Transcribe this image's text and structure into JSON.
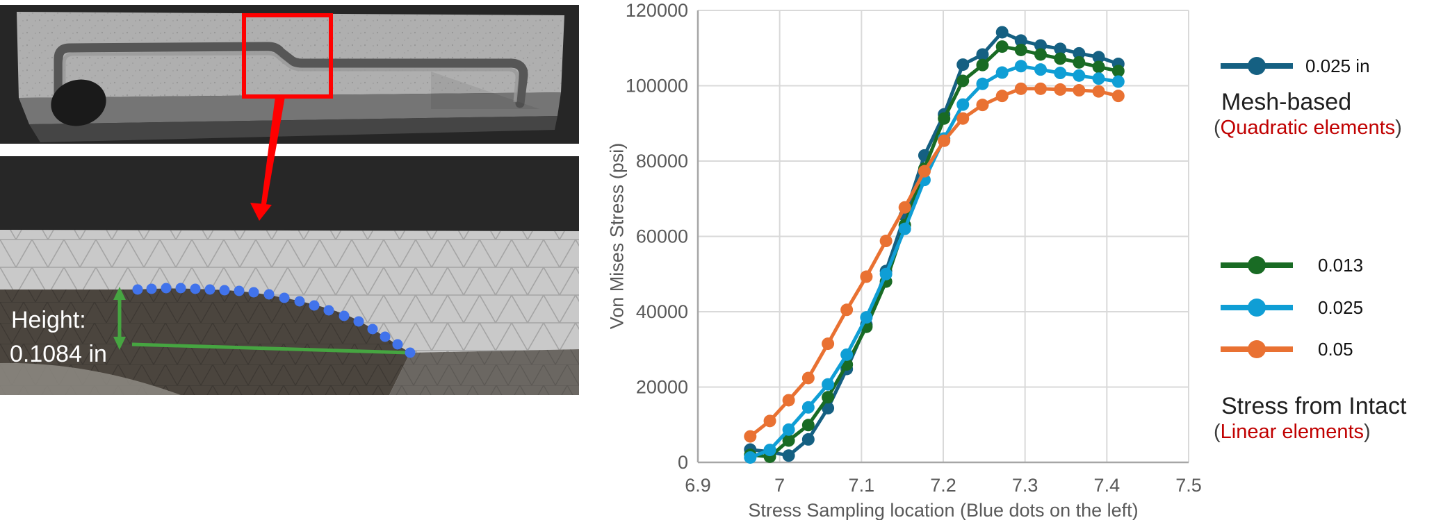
{
  "left_panel": {
    "annotation": {
      "height_line1": "Height:",
      "height_line2": "0.1084 in"
    },
    "colors": {
      "highlight_red": "#FF0000",
      "measure_green": "#46A541",
      "sample_dot_blue": "#4173EB"
    },
    "blue_dots": [
      [
        198,
        192
      ],
      [
        218,
        191
      ],
      [
        239,
        190
      ],
      [
        260,
        190
      ],
      [
        281,
        191
      ],
      [
        302,
        192
      ],
      [
        323,
        193
      ],
      [
        344,
        194
      ],
      [
        365,
        196
      ],
      [
        387,
        199
      ],
      [
        409,
        204
      ],
      [
        431,
        209
      ],
      [
        452,
        215
      ],
      [
        473,
        222
      ],
      [
        495,
        230
      ],
      [
        516,
        238
      ],
      [
        536,
        249
      ],
      [
        554,
        260
      ],
      [
        572,
        271
      ],
      [
        590,
        283
      ]
    ]
  },
  "chart_data": {
    "type": "line",
    "title": "",
    "xlabel": "Stress Sampling location (Blue dots on the left)",
    "ylabel": "Von Mises Stress (psi)",
    "xlim": [
      6.9,
      7.5
    ],
    "ylim": [
      0,
      120000
    ],
    "grid": true,
    "x_ticks": [
      "6.9",
      "7",
      "7.1",
      "7.2",
      "7.3",
      "7.4",
      "7.5"
    ],
    "x_tick_values": [
      6.9,
      7.0,
      7.1,
      7.2,
      7.3,
      7.4,
      7.5
    ],
    "y_ticks": [
      "0",
      "20000",
      "40000",
      "60000",
      "80000",
      "100000",
      "120000"
    ],
    "y_tick_values": [
      0,
      20000,
      40000,
      60000,
      80000,
      100000,
      120000
    ],
    "x": [
      6.964,
      6.988,
      7.011,
      7.035,
      7.059,
      7.082,
      7.106,
      7.13,
      7.153,
      7.177,
      7.201,
      7.224,
      7.248,
      7.272,
      7.295,
      7.319,
      7.343,
      7.366,
      7.39,
      7.414
    ],
    "series": [
      {
        "name": "0.025 in",
        "group": "Mesh-based (Quadratic elements)",
        "color": "#156082",
        "y": [
          3400,
          2800,
          1800,
          6100,
          14400,
          24800,
          36600,
          50800,
          65500,
          81500,
          92400,
          105600,
          108300,
          114200,
          112000,
          110700,
          109800,
          108600,
          107600,
          105800
        ]
      },
      {
        "name": "0.013",
        "group": "Stress from Intact (Linear elements)",
        "color": "#196B24",
        "y": [
          2000,
          1500,
          5800,
          9900,
          17300,
          26000,
          36000,
          48000,
          63000,
          78000,
          91300,
          101300,
          105500,
          110400,
          109500,
          108300,
          107200,
          106200,
          105000,
          103900
        ]
      },
      {
        "name": "0.025",
        "group": "Stress from Intact (Linear elements)",
        "color": "#0F9ED5",
        "y": [
          1300,
          3300,
          8700,
          14600,
          20700,
          28600,
          38500,
          50000,
          62000,
          75000,
          86000,
          95000,
          100500,
          103500,
          105200,
          104300,
          103400,
          102700,
          101900,
          101100
        ]
      },
      {
        "name": "0.05",
        "group": "Stress from Intact (Linear elements)",
        "color": "#E97132",
        "y": [
          6900,
          11000,
          16500,
          22400,
          31500,
          40500,
          49300,
          58800,
          67700,
          77300,
          85400,
          91300,
          94900,
          97300,
          99200,
          99200,
          99000,
          98800,
          98500,
          97300
        ]
      }
    ]
  },
  "legend": {
    "mesh_based": {
      "marker_label": "0.025 in",
      "color": "#156082",
      "title": "Mesh-based",
      "paren_open": "(",
      "subtitle": "Quadratic elements",
      "paren_close": ")"
    },
    "intact": {
      "title": "Stress from Intact",
      "paren_open": "(",
      "subtitle": "Linear elements",
      "paren_close": ")",
      "entries": [
        {
          "label": "0.013",
          "color": "#196B24"
        },
        {
          "label": "0.025",
          "color": "#0F9ED5"
        },
        {
          "label": "0.05",
          "color": "#E97132"
        }
      ]
    }
  }
}
